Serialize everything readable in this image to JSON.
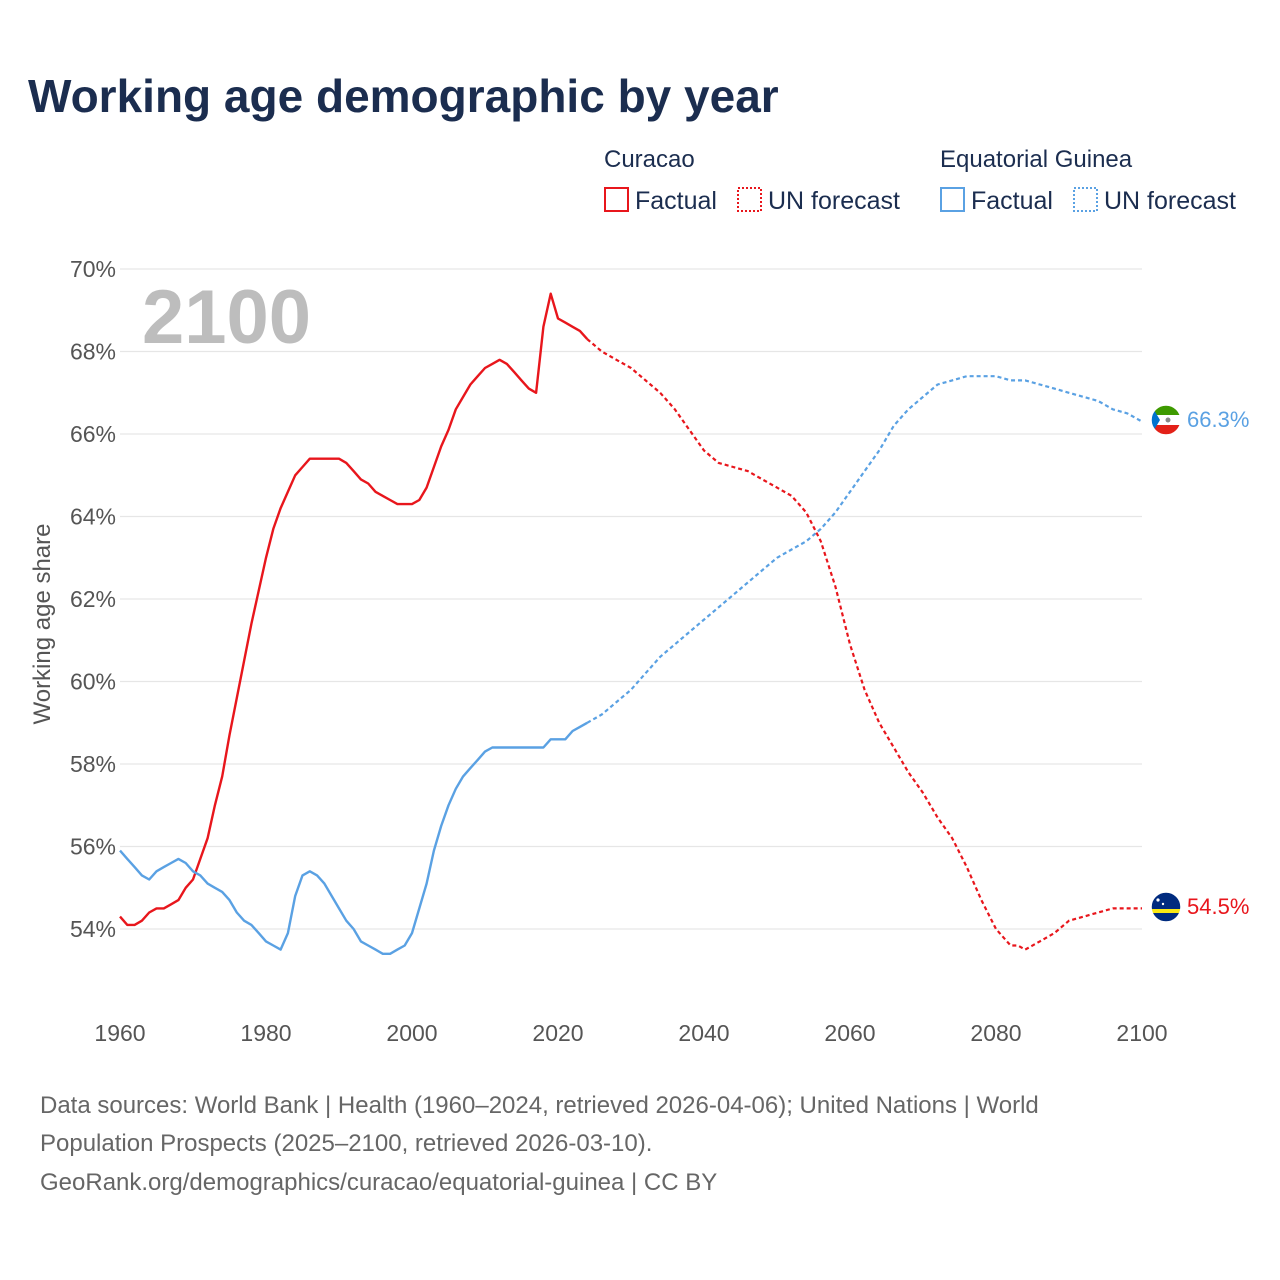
{
  "title": "Working age demographic by year",
  "legend": {
    "groups": [
      {
        "country": "Curacao",
        "factual_label": "Factual",
        "forecast_label": "UN forecast",
        "color": "#e8161c"
      },
      {
        "country": "Equatorial Guinea",
        "factual_label": "Factual",
        "forecast_label": "UN forecast",
        "color": "#5aa1e3"
      }
    ]
  },
  "year_label": "2100",
  "source_lines": [
    "Data sources: World Bank | Health (1960–2024, retrieved 2026-04-06); United Nations | World",
    "Population Prospects (2025–2100, retrieved 2026-03-10).",
    "GeoRank.org/demographics/curacao/equatorial-guinea | CC BY"
  ],
  "chart_data": {
    "type": "line",
    "title": "Working age demographic by year",
    "xlabel": "",
    "ylabel": "Working age share",
    "xlim": [
      1960,
      2100
    ],
    "ylim": [
      52.2,
      70
    ],
    "x_ticks": [
      1960,
      1980,
      2000,
      2020,
      2040,
      2060,
      2080,
      2100
    ],
    "x_tick_labels": [
      "1960",
      "1980",
      "2000",
      "2020",
      "2040",
      "2060",
      "2080",
      "2100"
    ],
    "y_ticks": [
      54,
      56,
      58,
      60,
      62,
      64,
      66,
      68,
      70
    ],
    "y_tick_labels": [
      "54%",
      "56%",
      "58%",
      "60%",
      "62%",
      "64%",
      "66%",
      "68%",
      "70%"
    ],
    "grid": true,
    "series": [
      {
        "name": "Curacao",
        "color": "#e8161c",
        "end_label": "54.5%",
        "factual": {
          "x": [
            1960,
            1961,
            1962,
            1963,
            1964,
            1965,
            1966,
            1967,
            1968,
            1969,
            1970,
            1971,
            1972,
            1973,
            1974,
            1975,
            1976,
            1977,
            1978,
            1979,
            1980,
            1981,
            1982,
            1983,
            1984,
            1985,
            1986,
            1987,
            1988,
            1989,
            1990,
            1991,
            1992,
            1993,
            1994,
            1995,
            1996,
            1997,
            1998,
            1999,
            2000,
            2001,
            2002,
            2003,
            2004,
            2005,
            2006,
            2007,
            2008,
            2009,
            2010,
            2011,
            2012,
            2013,
            2014,
            2015,
            2016,
            2017,
            2018,
            2019,
            2020,
            2021,
            2022,
            2023,
            2024
          ],
          "y": [
            54.3,
            54.1,
            54.1,
            54.2,
            54.4,
            54.5,
            54.5,
            54.6,
            54.7,
            55.0,
            55.2,
            55.7,
            56.2,
            57.0,
            57.7,
            58.7,
            59.6,
            60.5,
            61.4,
            62.2,
            63.0,
            63.7,
            64.2,
            64.6,
            65.0,
            65.2,
            65.4,
            65.4,
            65.4,
            65.4,
            65.4,
            65.3,
            65.1,
            64.9,
            64.8,
            64.6,
            64.5,
            64.4,
            64.3,
            64.3,
            64.3,
            64.4,
            64.7,
            65.2,
            65.7,
            66.1,
            66.6,
            66.9,
            67.2,
            67.4,
            67.6,
            67.7,
            67.8,
            67.7,
            67.5,
            67.3,
            67.1,
            67.0,
            68.6,
            69.4,
            68.8,
            68.7,
            68.6,
            68.5,
            68.3
          ]
        },
        "forecast": {
          "x": [
            2024,
            2026,
            2028,
            2030,
            2032,
            2034,
            2036,
            2038,
            2040,
            2042,
            2044,
            2046,
            2048,
            2050,
            2052,
            2054,
            2056,
            2058,
            2060,
            2062,
            2064,
            2066,
            2068,
            2070,
            2072,
            2074,
            2076,
            2078,
            2080,
            2082,
            2083,
            2084,
            2086,
            2088,
            2090,
            2092,
            2094,
            2096,
            2098,
            2100
          ],
          "y": [
            68.3,
            68.0,
            67.8,
            67.6,
            67.3,
            67.0,
            66.6,
            66.1,
            65.6,
            65.3,
            65.2,
            65.1,
            64.9,
            64.7,
            64.5,
            64.1,
            63.4,
            62.3,
            60.9,
            59.8,
            59.0,
            58.4,
            57.8,
            57.3,
            56.7,
            56.2,
            55.5,
            54.7,
            54.0,
            53.6,
            53.6,
            53.5,
            53.7,
            53.9,
            54.2,
            54.3,
            54.4,
            54.5,
            54.5,
            54.5
          ]
        }
      },
      {
        "name": "Equatorial Guinea",
        "color": "#5aa1e3",
        "end_label": "66.3%",
        "factual": {
          "x": [
            1960,
            1961,
            1962,
            1963,
            1964,
            1965,
            1966,
            1967,
            1968,
            1969,
            1970,
            1971,
            1972,
            1973,
            1974,
            1975,
            1976,
            1977,
            1978,
            1979,
            1980,
            1981,
            1982,
            1983,
            1984,
            1985,
            1986,
            1987,
            1988,
            1989,
            1990,
            1991,
            1992,
            1993,
            1994,
            1995,
            1996,
            1997,
            1998,
            1999,
            2000,
            2001,
            2002,
            2003,
            2004,
            2005,
            2006,
            2007,
            2008,
            2009,
            2010,
            2011,
            2012,
            2013,
            2014,
            2015,
            2016,
            2017,
            2018,
            2019,
            2020,
            2021,
            2022,
            2023,
            2024
          ],
          "y": [
            55.9,
            55.7,
            55.5,
            55.3,
            55.2,
            55.4,
            55.5,
            55.6,
            55.7,
            55.6,
            55.4,
            55.3,
            55.1,
            55.0,
            54.9,
            54.7,
            54.4,
            54.2,
            54.1,
            53.9,
            53.7,
            53.6,
            53.5,
            53.9,
            54.8,
            55.3,
            55.4,
            55.3,
            55.1,
            54.8,
            54.5,
            54.2,
            54.0,
            53.7,
            53.6,
            53.5,
            53.4,
            53.4,
            53.5,
            53.6,
            53.9,
            54.5,
            55.1,
            55.9,
            56.5,
            57.0,
            57.4,
            57.7,
            57.9,
            58.1,
            58.3,
            58.4,
            58.4,
            58.4,
            58.4,
            58.4,
            58.4,
            58.4,
            58.4,
            58.6,
            58.6,
            58.6,
            58.8,
            58.9,
            59.0
          ]
        },
        "forecast": {
          "x": [
            2024,
            2026,
            2028,
            2030,
            2032,
            2034,
            2036,
            2038,
            2040,
            2042,
            2044,
            2046,
            2048,
            2050,
            2052,
            2054,
            2056,
            2058,
            2060,
            2062,
            2064,
            2066,
            2068,
            2070,
            2072,
            2074,
            2076,
            2078,
            2080,
            2082,
            2084,
            2086,
            2088,
            2090,
            2092,
            2094,
            2096,
            2098,
            2100
          ],
          "y": [
            59.0,
            59.2,
            59.5,
            59.8,
            60.2,
            60.6,
            60.9,
            61.2,
            61.5,
            61.8,
            62.1,
            62.4,
            62.7,
            63.0,
            63.2,
            63.4,
            63.7,
            64.1,
            64.6,
            65.1,
            65.6,
            66.2,
            66.6,
            66.9,
            67.2,
            67.3,
            67.4,
            67.4,
            67.4,
            67.3,
            67.3,
            67.2,
            67.1,
            67.0,
            66.9,
            66.8,
            66.6,
            66.5,
            66.3
          ]
        }
      }
    ]
  }
}
